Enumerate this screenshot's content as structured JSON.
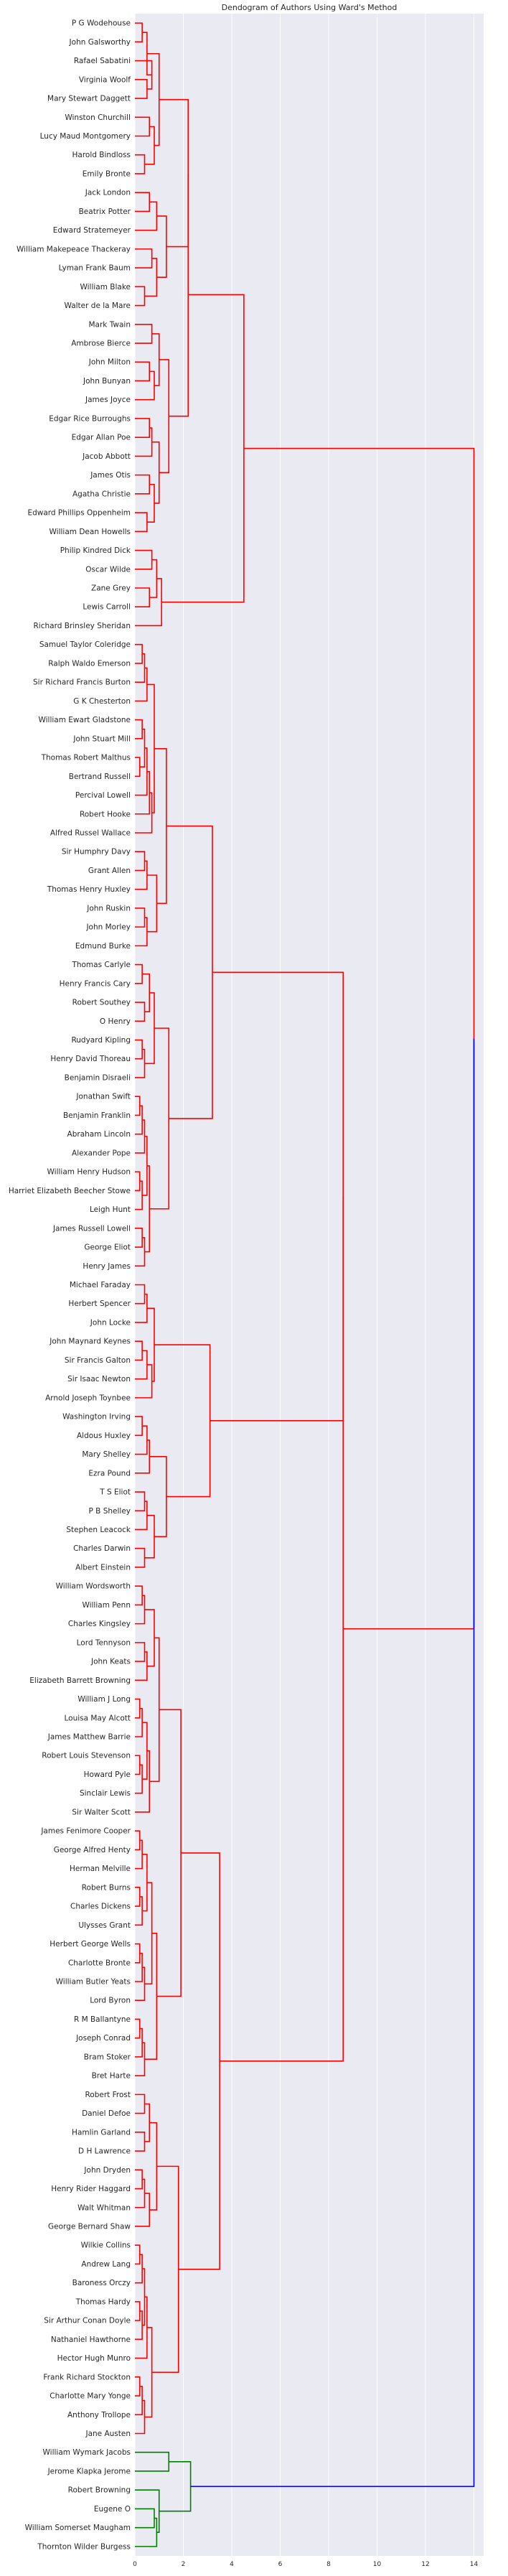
{
  "chart_data": {
    "type": "dendrogram",
    "title": "Dendogram of Authors Using Ward's Method",
    "xlabel": "",
    "ylabel": "",
    "xlim": [
      0,
      14.4
    ],
    "xticks": [
      0,
      2,
      4,
      6,
      8,
      10,
      12,
      14
    ],
    "grid": true,
    "orientation": "left",
    "colors": {
      "plot_background": "#eaeaf2",
      "grid": "#ffffff",
      "cluster_1": "#ff0000",
      "cluster_2": "#008000",
      "above_threshold": "#0000ff"
    },
    "leaves": [
      "P G Wodehouse",
      "John Galsworthy",
      "Rafael Sabatini",
      "Virginia Woolf",
      "Mary Stewart Daggett",
      "Winston Churchill",
      "Lucy Maud Montgomery",
      "Harold Bindloss",
      "Emily Bronte",
      "Jack London",
      "Beatrix Potter",
      "Edward Stratemeyer",
      "William Makepeace Thackeray",
      "Lyman Frank Baum",
      "William Blake",
      "Walter de la Mare",
      "Mark Twain",
      "Ambrose Bierce",
      "John Milton",
      "John Bunyan",
      "James Joyce",
      "Edgar Rice Burroughs",
      "Edgar Allan Poe",
      "Jacob Abbott",
      "James Otis",
      "Agatha Christie",
      "Edward Phillips Oppenheim",
      "William Dean Howells",
      "Philip Kindred Dick",
      "Oscar Wilde",
      "Zane Grey",
      "Lewis Carroll",
      "Richard Brinsley Sheridan",
      "Samuel Taylor Coleridge",
      "Ralph Waldo Emerson",
      "Sir Richard Francis Burton",
      "G K Chesterton",
      "William Ewart Gladstone",
      "John Stuart Mill",
      "Thomas Robert Malthus",
      "Bertrand Russell",
      "Percival Lowell",
      "Robert Hooke",
      "Alfred Russel Wallace",
      "Sir Humphry Davy",
      "Grant Allen",
      "Thomas Henry Huxley",
      "John Ruskin",
      "John Morley",
      "Edmund Burke",
      "Thomas Carlyle",
      "Henry Francis Cary",
      "Robert Southey",
      "O Henry",
      "Rudyard Kipling",
      "Henry David Thoreau",
      "Benjamin Disraeli",
      "Jonathan Swift",
      "Benjamin Franklin",
      "Abraham Lincoln",
      "Alexander Pope",
      "William Henry Hudson",
      "Harriet Elizabeth Beecher Stowe",
      "Leigh Hunt",
      "James Russell Lowell",
      "George Eliot",
      "Henry James",
      "Michael Faraday",
      "Herbert Spencer",
      "John Locke",
      "John Maynard Keynes",
      "Sir Francis Galton",
      "Sir Isaac Newton",
      "Arnold Joseph Toynbee",
      "Washington Irving",
      "Aldous Huxley",
      "Mary Shelley",
      "Ezra Pound",
      "T S Eliot",
      "P B Shelley",
      "Stephen Leacock",
      "Charles Darwin",
      "Albert Einstein",
      "William Wordsworth",
      "William Penn",
      "Charles Kingsley",
      "Lord Tennyson",
      "John Keats",
      "Elizabeth Barrett Browning",
      "William J Long",
      "Louisa May Alcott",
      "James Matthew Barrie",
      "Robert Louis Stevenson",
      "Howard Pyle",
      "Sinclair Lewis",
      "Sir Walter Scott",
      "James Fenimore Cooper",
      "George Alfred Henty",
      "Herman Melville",
      "Robert Burns",
      "Charles Dickens",
      "Ulysses Grant",
      "Herbert George Wells",
      "Charlotte Bronte",
      "William Butler Yeats",
      "Lord Byron",
      "R M Ballantyne",
      "Joseph Conrad",
      "Bram Stoker",
      "Bret Harte",
      "Robert Frost",
      "Daniel Defoe",
      "Hamlin Garland",
      "D H Lawrence",
      "John Dryden",
      "Henry Rider Haggard",
      "Walt Whitman",
      "George Bernard Shaw",
      "Wilkie Collins",
      "Andrew Lang",
      "Baroness Orczy",
      "Thomas Hardy",
      "Sir Arthur Conan Doyle",
      "Nathaniel Hawthorne",
      "Hector Hugh Munro",
      "Frank Richard Stockton",
      "Charlotte Mary Yonge",
      "Anthony Trollope",
      "Jane Austen",
      "William Wymark Jacobs",
      "Jerome Klapka Jerome",
      "Robert Browning",
      "Eugene O",
      "William Somerset Maugham",
      "Thornton Wilder Burgess"
    ],
    "merges": [
      {
        "left": "L0",
        "right": "L1",
        "height": 0.3
      },
      {
        "left": "L3",
        "right": "L4",
        "height": 0.5
      },
      {
        "left": "L2",
        "right": "N1",
        "height": 0.7
      },
      {
        "left": "N0",
        "right": "N2",
        "height": 0.5
      },
      {
        "left": "L5",
        "right": "L6",
        "height": 0.6
      },
      {
        "left": "L7",
        "right": "L8",
        "height": 0.4
      },
      {
        "left": "N4",
        "right": "N5",
        "height": 0.8
      },
      {
        "left": "N3",
        "right": "N6",
        "height": 1.0
      },
      {
        "left": "L9",
        "right": "L10",
        "height": 0.6
      },
      {
        "left": "N8",
        "right": "L11",
        "height": 0.9
      },
      {
        "left": "L12",
        "right": "L13",
        "height": 0.7
      },
      {
        "left": "L14",
        "right": "L15",
        "height": 0.4
      },
      {
        "left": "N10",
        "right": "N11",
        "height": 0.9
      },
      {
        "left": "N9",
        "right": "N12",
        "height": 1.3
      },
      {
        "left": "N7",
        "right": "N13",
        "height": 2.2
      },
      {
        "left": "L16",
        "right": "L17",
        "height": 0.7
      },
      {
        "left": "L18",
        "right": "L19",
        "height": 0.6
      },
      {
        "left": "N16",
        "right": "L20",
        "height": 0.8
      },
      {
        "left": "N15",
        "right": "N17",
        "height": 1.0
      },
      {
        "left": "L21",
        "right": "L22",
        "height": 0.6
      },
      {
        "left": "N19",
        "right": "L23",
        "height": 0.7
      },
      {
        "left": "L24",
        "right": "L25",
        "height": 0.6
      },
      {
        "left": "L26",
        "right": "L27",
        "height": 0.5
      },
      {
        "left": "N21",
        "right": "N22",
        "height": 0.8
      },
      {
        "left": "N20",
        "right": "N23",
        "height": 1.0
      },
      {
        "left": "N18",
        "right": "N24",
        "height": 1.4
      },
      {
        "left": "N14",
        "right": "N25",
        "height": 2.2
      },
      {
        "left": "L28",
        "right": "L29",
        "height": 0.7
      },
      {
        "left": "L30",
        "right": "L31",
        "height": 0.6
      },
      {
        "left": "N27",
        "right": "N28",
        "height": 0.9
      },
      {
        "left": "N29",
        "right": "L32",
        "height": 1.1
      },
      {
        "left": "N26",
        "right": "N30",
        "height": 4.5
      },
      {
        "left": "L33",
        "right": "L34",
        "height": 0.3
      },
      {
        "left": "N32",
        "right": "L35",
        "height": 0.4
      },
      {
        "left": "N33",
        "right": "L36",
        "height": 0.5
      },
      {
        "left": "L37",
        "right": "L38",
        "height": 0.3
      },
      {
        "left": "L39",
        "right": "L40",
        "height": 0.2
      },
      {
        "left": "N35",
        "right": "N36",
        "height": 0.4
      },
      {
        "left": "N37",
        "right": "L41",
        "height": 0.5
      },
      {
        "left": "N38",
        "right": "L42",
        "height": 0.6
      },
      {
        "left": "N39",
        "right": "L43",
        "height": 0.7
      },
      {
        "left": "N34",
        "right": "N40",
        "height": 0.8
      },
      {
        "left": "L44",
        "right": "L45",
        "height": 0.4
      },
      {
        "left": "N42",
        "right": "L46",
        "height": 0.5
      },
      {
        "left": "L47",
        "right": "L48",
        "height": 0.4
      },
      {
        "left": "N44",
        "right": "L49",
        "height": 0.5
      },
      {
        "left": "N43",
        "right": "N45",
        "height": 0.9
      },
      {
        "left": "N41",
        "right": "N46",
        "height": 1.3
      },
      {
        "left": "L50",
        "right": "L51",
        "height": 0.3
      },
      {
        "left": "L52",
        "right": "L53",
        "height": 0.4
      },
      {
        "left": "N48",
        "right": "N49",
        "height": 0.6
      },
      {
        "left": "L54",
        "right": "L55",
        "height": 0.3
      },
      {
        "left": "N51",
        "right": "L56",
        "height": 0.4
      },
      {
        "left": "N50",
        "right": "N52",
        "height": 0.8
      },
      {
        "left": "L57",
        "right": "L58",
        "height": 0.2
      },
      {
        "left": "N54",
        "right": "L59",
        "height": 0.3
      },
      {
        "left": "N55",
        "right": "L60",
        "height": 0.4
      },
      {
        "left": "L61",
        "right": "L62",
        "height": 0.2
      },
      {
        "left": "N57",
        "right": "L63",
        "height": 0.3
      },
      {
        "left": "N56",
        "right": "N58",
        "height": 0.5
      },
      {
        "left": "L64",
        "right": "L65",
        "height": 0.3
      },
      {
        "left": "N60",
        "right": "L66",
        "height": 0.4
      },
      {
        "left": "N59",
        "right": "N61",
        "height": 0.6
      },
      {
        "left": "N53",
        "right": "N62",
        "height": 1.4
      },
      {
        "left": "N47",
        "right": "N63",
        "height": 3.2
      },
      {
        "left": "L67",
        "right": "L68",
        "height": 0.4
      },
      {
        "left": "N65",
        "right": "L69",
        "height": 0.5
      },
      {
        "left": "L70",
        "right": "L71",
        "height": 0.3
      },
      {
        "left": "N67",
        "right": "L72",
        "height": 0.5
      },
      {
        "left": "N68",
        "right": "L73",
        "height": 0.7
      },
      {
        "left": "N66",
        "right": "N69",
        "height": 0.8
      },
      {
        "left": "L74",
        "right": "L75",
        "height": 0.3
      },
      {
        "left": "N71",
        "right": "L76",
        "height": 0.5
      },
      {
        "left": "N72",
        "right": "L77",
        "height": 0.6
      },
      {
        "left": "L78",
        "right": "L79",
        "height": 0.4
      },
      {
        "left": "N74",
        "right": "L80",
        "height": 0.5
      },
      {
        "left": "L81",
        "right": "L82",
        "height": 0.4
      },
      {
        "left": "N75",
        "right": "N76",
        "height": 0.8
      },
      {
        "left": "N73",
        "right": "N77",
        "height": 1.3
      },
      {
        "left": "N70",
        "right": "N78",
        "height": 3.1
      },
      {
        "left": "N64",
        "right": "N79",
        "height": 8.6
      },
      {
        "left": "L83",
        "right": "L84",
        "height": 0.3
      },
      {
        "left": "N81",
        "right": "L85",
        "height": 0.4
      },
      {
        "left": "L86",
        "right": "L87",
        "height": 0.4
      },
      {
        "left": "N83",
        "right": "L88",
        "height": 0.5
      },
      {
        "left": "N82",
        "right": "N84",
        "height": 0.8
      },
      {
        "left": "L89",
        "right": "L90",
        "height": 0.2
      },
      {
        "left": "N86",
        "right": "L91",
        "height": 0.3
      },
      {
        "left": "L92",
        "right": "L93",
        "height": 0.2
      },
      {
        "left": "N88",
        "right": "L94",
        "height": 0.3
      },
      {
        "left": "N87",
        "right": "N89",
        "height": 0.5
      },
      {
        "left": "N90",
        "right": "L95",
        "height": 0.6
      },
      {
        "left": "N85",
        "right": "N91",
        "height": 1.0
      },
      {
        "left": "L96",
        "right": "L97",
        "height": 0.2
      },
      {
        "left": "N93",
        "right": "L98",
        "height": 0.3
      },
      {
        "left": "L99",
        "right": "L100",
        "height": 0.2
      },
      {
        "left": "N95",
        "right": "L101",
        "height": 0.3
      },
      {
        "left": "N94",
        "right": "N96",
        "height": 0.5
      },
      {
        "left": "L102",
        "right": "L103",
        "height": 0.2
      },
      {
        "left": "N98",
        "right": "L104",
        "height": 0.3
      },
      {
        "left": "N99",
        "right": "L105",
        "height": 0.4
      },
      {
        "left": "N97",
        "right": "N100",
        "height": 0.7
      },
      {
        "left": "L106",
        "right": "L107",
        "height": 0.2
      },
      {
        "left": "N102",
        "right": "L108",
        "height": 0.3
      },
      {
        "left": "N103",
        "right": "L109",
        "height": 0.4
      },
      {
        "left": "N101",
        "right": "N104",
        "height": 0.9
      },
      {
        "left": "N92",
        "right": "N105",
        "height": 1.9
      },
      {
        "left": "L110",
        "right": "L111",
        "height": 0.4
      },
      {
        "left": "L112",
        "right": "L113",
        "height": 0.4
      },
      {
        "left": "N107",
        "right": "N108",
        "height": 0.6
      },
      {
        "left": "L114",
        "right": "L115",
        "height": 0.3
      },
      {
        "left": "N110",
        "right": "L116",
        "height": 0.4
      },
      {
        "left": "N111",
        "right": "L117",
        "height": 0.6
      },
      {
        "left": "N109",
        "right": "N112",
        "height": 0.9
      },
      {
        "left": "L118",
        "right": "L119",
        "height": 0.2
      },
      {
        "left": "N114",
        "right": "L120",
        "height": 0.3
      },
      {
        "left": "L121",
        "right": "L122",
        "height": 0.2
      },
      {
        "left": "N116",
        "right": "L123",
        "height": 0.3
      },
      {
        "left": "N115",
        "right": "N117",
        "height": 0.4
      },
      {
        "left": "N118",
        "right": "L124",
        "height": 0.5
      },
      {
        "left": "L125",
        "right": "L126",
        "height": 0.2
      },
      {
        "left": "N120",
        "right": "L127",
        "height": 0.3
      },
      {
        "left": "N121",
        "right": "L128",
        "height": 0.4
      },
      {
        "left": "N119",
        "right": "N122",
        "height": 0.7
      },
      {
        "left": "N113",
        "right": "N123",
        "height": 1.8
      },
      {
        "left": "N106",
        "right": "N124",
        "height": 3.5
      },
      {
        "left": "N80",
        "right": "N125",
        "height": 8.6
      },
      {
        "left": "N31",
        "right": "N126",
        "height": 14.0
      },
      {
        "left": "L129",
        "right": "L130",
        "height": 1.4
      },
      {
        "left": "L132",
        "right": "L133",
        "height": 0.8
      },
      {
        "left": "N129",
        "right": "L134",
        "height": 0.9
      },
      {
        "left": "L131",
        "right": "N130",
        "height": 1.0
      },
      {
        "left": "N128",
        "right": "N131",
        "height": 2.3
      },
      {
        "left": "N127",
        "right": "N132",
        "height": 14.0
      }
    ]
  }
}
